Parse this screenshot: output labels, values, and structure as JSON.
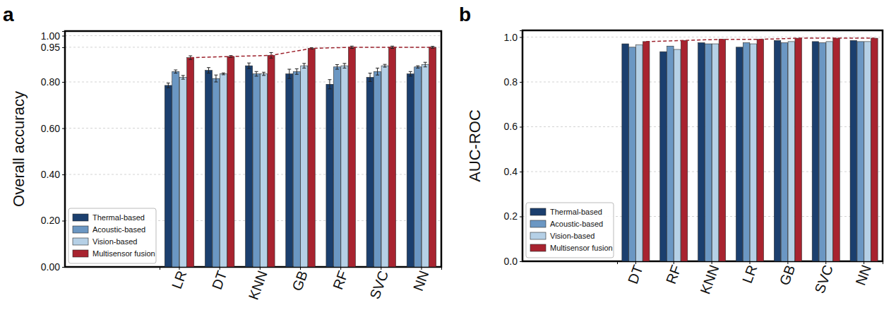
{
  "chart_data": [
    {
      "type": "bar",
      "title": "a",
      "y_label": "Overall accuracy",
      "categories": [
        "LR",
        "DT",
        "KNN",
        "GB",
        "RF",
        "SVC",
        "NN"
      ],
      "series": [
        {
          "name": "Thermal-based",
          "color": "#1b3f6e",
          "values": [
            0.785,
            0.85,
            0.87,
            0.835,
            0.79,
            0.82,
            0.835
          ],
          "errors": [
            0.01,
            0.012,
            0.012,
            0.02,
            0.02,
            0.018,
            0.01
          ]
        },
        {
          "name": "Acoustic-based",
          "color": "#6b97c3",
          "values": [
            0.845,
            0.815,
            0.835,
            0.845,
            0.865,
            0.845,
            0.865
          ],
          "errors": [
            0.007,
            0.015,
            0.01,
            0.012,
            0.01,
            0.015,
            0.005
          ]
        },
        {
          "name": "Vision-based",
          "color": "#b5d0e6",
          "values": [
            0.82,
            0.835,
            0.835,
            0.87,
            0.87,
            0.87,
            0.875
          ],
          "errors": [
            0.008,
            0.004,
            0.007,
            0.01,
            0.01,
            0.006,
            0.01
          ]
        },
        {
          "name": "Multisensor fusion",
          "color": "#a8232f",
          "values": [
            0.905,
            0.91,
            0.915,
            0.945,
            0.95,
            0.95,
            0.95
          ],
          "errors": [
            0.008,
            0.004,
            0.012,
            0.003,
            0.005,
            0.005,
            0.004
          ],
          "line_style": "dashed"
        }
      ],
      "ylim": [
        0,
        1.02
      ],
      "yticks": [
        {
          "value": 0,
          "label": "0.00"
        },
        {
          "value": 0.2,
          "label": "0.20"
        },
        {
          "value": 0.4,
          "label": "0.40"
        },
        {
          "value": 0.6,
          "label": "0.60"
        },
        {
          "value": 0.8,
          "label": "0.80"
        },
        0.95,
        {
          "value": 1,
          "label": "1.00"
        }
      ],
      "grid": true,
      "legend": "lower left"
    },
    {
      "type": "bar",
      "title": "b",
      "y_label": "AUC-ROC",
      "categories": [
        "DT",
        "RF",
        "KNN",
        "LR",
        "GB",
        "SVC",
        "NN"
      ],
      "series": [
        {
          "name": "Thermal-based",
          "color": "#1b3f6e",
          "values": [
            0.97,
            0.935,
            0.975,
            0.955,
            0.985,
            0.98,
            0.985
          ]
        },
        {
          "name": "Acoustic-based",
          "color": "#6b97c3",
          "values": [
            0.955,
            0.96,
            0.97,
            0.975,
            0.975,
            0.975,
            0.98
          ]
        },
        {
          "name": "Vision-based",
          "color": "#b5d0e6",
          "values": [
            0.965,
            0.945,
            0.97,
            0.97,
            0.98,
            0.98,
            0.98
          ]
        },
        {
          "name": "Multisensor fusion",
          "color": "#a8232f",
          "values": [
            0.98,
            0.985,
            0.99,
            0.99,
            0.995,
            0.995,
            0.995
          ],
          "line_style": "dashed"
        }
      ],
      "ylim": [
        0,
        1.03
      ],
      "yticks": [
        {
          "value": 0,
          "label": "0.0"
        },
        {
          "value": 0.2,
          "label": "0.2"
        },
        {
          "value": 0.4,
          "label": "0.4"
        },
        {
          "value": 0.6,
          "label": "0.6"
        },
        {
          "value": 0.8,
          "label": "0.8"
        },
        {
          "value": 1,
          "label": "1.0"
        }
      ],
      "grid": true,
      "legend": "lower left"
    }
  ]
}
